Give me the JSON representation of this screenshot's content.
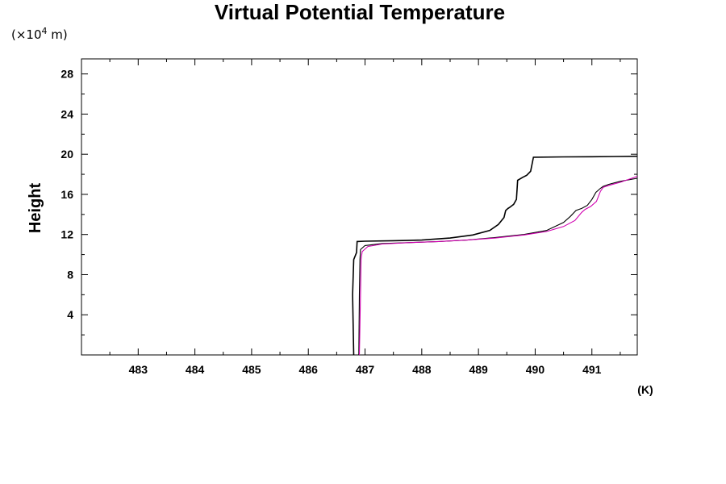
{
  "chart_data": {
    "type": "line",
    "title": "Virtual Potential Temperature",
    "ylabel": "Height",
    "yunit_prefix": "(×10",
    "yunit_exp": "4",
    "yunit_suffix": " m)",
    "xunit": "(K)",
    "xlim": [
      482.0,
      491.8
    ],
    "ylim": [
      0,
      29.5
    ],
    "xticks": [
      483,
      484,
      485,
      486,
      487,
      488,
      489,
      490,
      491
    ],
    "yticks": [
      4,
      8,
      12,
      16,
      20,
      24,
      28
    ],
    "colors": [
      "#000000",
      "#000000",
      "#d000b0"
    ],
    "series": [
      {
        "x": [
          486.8,
          486.78,
          486.8,
          486.85,
          486.86,
          487.0,
          487.5,
          488.0,
          488.5,
          488.9,
          489.2,
          489.35,
          489.45,
          489.48,
          489.52,
          489.55,
          489.62,
          489.67,
          489.68,
          489.69,
          489.78,
          489.85,
          489.92,
          489.97,
          490.5,
          491.0,
          491.8
        ],
        "y": [
          0.0,
          6.0,
          9.5,
          10.2,
          11.3,
          11.33,
          11.38,
          11.45,
          11.65,
          11.95,
          12.4,
          13.0,
          13.7,
          14.4,
          14.6,
          14.7,
          15.0,
          15.5,
          16.5,
          17.4,
          17.7,
          17.9,
          18.3,
          19.7,
          19.73,
          19.75,
          19.8
        ]
      },
      {
        "x": [
          486.89,
          486.9,
          486.91,
          486.92,
          487.0,
          487.3,
          487.8,
          488.3,
          488.8,
          489.3,
          489.8,
          490.2,
          490.5,
          490.62,
          490.72,
          490.82,
          490.92,
          491.0,
          491.07,
          491.15,
          491.2,
          491.3,
          491.5,
          491.8
        ],
        "y": [
          0.0,
          6.0,
          9.5,
          10.5,
          10.9,
          11.1,
          11.2,
          11.3,
          11.45,
          11.7,
          12.0,
          12.4,
          13.2,
          13.8,
          14.4,
          14.6,
          14.9,
          15.5,
          16.2,
          16.6,
          16.8,
          17.0,
          17.3,
          17.6
        ]
      },
      {
        "x": [
          486.9,
          486.92,
          486.93,
          486.95,
          487.05,
          487.3,
          487.8,
          488.3,
          488.8,
          489.3,
          489.8,
          490.2,
          490.5,
          490.7,
          490.82,
          490.88,
          490.98,
          491.08,
          491.15,
          491.2,
          491.3,
          491.5,
          491.8
        ],
        "y": [
          0.0,
          6.0,
          9.5,
          10.3,
          10.8,
          11.05,
          11.2,
          11.3,
          11.45,
          11.65,
          11.95,
          12.3,
          12.8,
          13.4,
          14.2,
          14.5,
          14.8,
          15.3,
          16.3,
          16.7,
          16.9,
          17.2,
          17.8
        ]
      }
    ]
  }
}
